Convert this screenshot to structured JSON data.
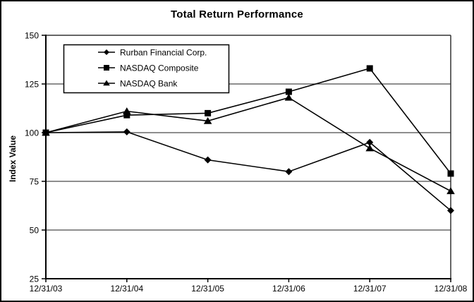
{
  "chart_data": {
    "type": "line",
    "title": "Total Return Performance",
    "ylabel": "Index Value",
    "xlabel": "",
    "categories": [
      "12/31/03",
      "12/31/04",
      "12/31/05",
      "12/31/06",
      "12/31/07",
      "12/31/08"
    ],
    "series": [
      {
        "name": "Rurban Financial Corp.",
        "marker": "diamond",
        "values": [
          100,
          100.4,
          86,
          80,
          95,
          60
        ]
      },
      {
        "name": "NASDAQ Composite",
        "marker": "square",
        "values": [
          100,
          109,
          110,
          121,
          133,
          79
        ]
      },
      {
        "name": "NASDAQ Bank",
        "marker": "triangle",
        "values": [
          100,
          111,
          106,
          118,
          92,
          70
        ]
      }
    ],
    "ylim": [
      25,
      150
    ],
    "yticks": [
      25,
      50,
      75,
      100,
      125,
      150
    ],
    "grid": true,
    "legend_position": "top-left-inside",
    "colors": {
      "line": "#000000",
      "grid": "#4a4a4a",
      "frame": "#333333",
      "text": "#000000",
      "background": "#ffffff"
    }
  }
}
